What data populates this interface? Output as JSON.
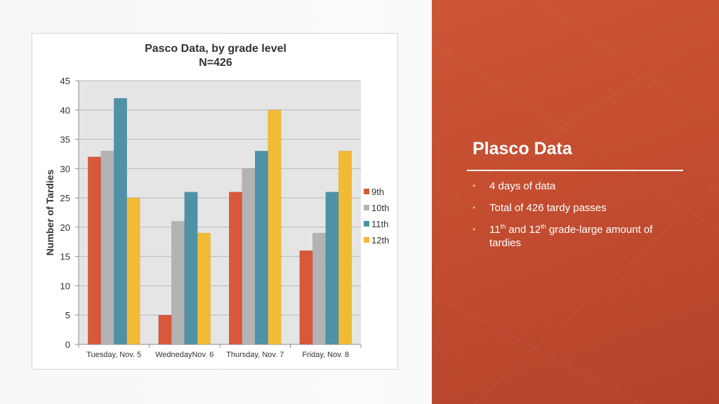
{
  "slide": {
    "title": "Plasco Data",
    "bullets": [
      {
        "text": "4 days of data"
      },
      {
        "text": "Total of 426 tardy passes"
      },
      {
        "pre": "11",
        "sup1": "th",
        "mid": " and 12",
        "sup2": "th",
        "post": " grade-large amount of tardies"
      }
    ],
    "bullet_color": "#f3c13a",
    "panel_color": "#c44d30"
  },
  "chart_data": {
    "type": "bar",
    "title": "Pasco Data, by grade level",
    "subtitle": "N=426",
    "xlabel": "",
    "ylabel": "Number of Tardies",
    "ylim": [
      0,
      45
    ],
    "yticks": [
      0,
      5,
      10,
      15,
      20,
      25,
      30,
      35,
      40,
      45
    ],
    "grid": true,
    "legend_position": "right",
    "categories": [
      "Tuesday, Nov. 5",
      "WednedayNov. 6",
      "Thursday, Nov. 7",
      "Friday, Nov. 8"
    ],
    "series": [
      {
        "name": "9th",
        "color": "#d9573a",
        "values": [
          32,
          5,
          26,
          16
        ]
      },
      {
        "name": "10th",
        "color": "#b3b3b3",
        "values": [
          33,
          21,
          30,
          19
        ]
      },
      {
        "name": "11th",
        "color": "#4f92a6",
        "values": [
          42,
          26,
          33,
          26
        ]
      },
      {
        "name": "12th",
        "color": "#f1bb36",
        "values": [
          25,
          19,
          40,
          33
        ]
      }
    ]
  }
}
